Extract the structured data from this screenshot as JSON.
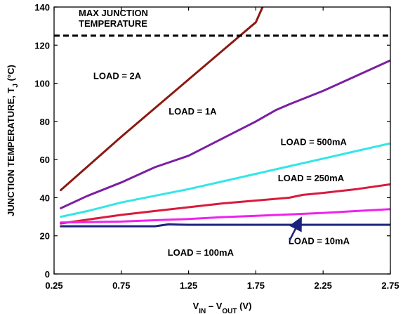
{
  "chart_data": {
    "type": "line",
    "title": "",
    "xlabel": {
      "parts": [
        {
          "text": "V",
          "sub": false
        },
        {
          "text": "IN",
          "sub": true
        },
        {
          "text": " – V",
          "sub": false
        },
        {
          "text": "OUT",
          "sub": true
        },
        {
          "text": " (V)",
          "sub": false
        }
      ]
    },
    "ylabel": {
      "parts": [
        {
          "text": "JUNCTION TEMPERATURE, T",
          "sub": false
        },
        {
          "text": "J",
          "sub": true
        },
        {
          "text": " (°C)",
          "sub": false
        }
      ]
    },
    "xlim": [
      0.25,
      2.75
    ],
    "ylim": [
      0,
      140
    ],
    "x_ticks": [
      0.25,
      0.75,
      1.25,
      1.75,
      2.25,
      2.75
    ],
    "x_tick_labels": [
      "0.25",
      "0.75",
      "1.25",
      "1.75",
      "2.25",
      "2.75"
    ],
    "y_ticks": [
      0,
      20,
      40,
      60,
      80,
      100,
      120,
      140
    ],
    "y_tick_labels": [
      "0",
      "20",
      "40",
      "60",
      "80",
      "100",
      "120",
      "140"
    ],
    "grid": false,
    "reference_line": {
      "y": 125,
      "label_lines": [
        "MAX JUNCTION",
        "TEMPERATURE"
      ],
      "color": "#000000",
      "style": "dashed"
    },
    "series": [
      {
        "name": "LOAD = 2A",
        "color": "#8b1a12",
        "x": [
          0.3,
          0.75,
          1.0,
          1.25,
          1.5,
          1.75,
          1.8
        ],
        "y": [
          44,
          72,
          87,
          102,
          117,
          132,
          140
        ]
      },
      {
        "name": "LOAD = 1A",
        "color": "#7b1fa2",
        "x": [
          0.3,
          0.5,
          0.75,
          1.0,
          1.25,
          1.5,
          1.75,
          1.9,
          2.0,
          2.25,
          2.5,
          2.75
        ],
        "y": [
          34.5,
          41,
          48,
          56,
          62,
          71,
          80,
          86,
          89,
          96,
          104,
          112
        ]
      },
      {
        "name": "LOAD = 500mA",
        "color": "#33e6e6",
        "x": [
          0.3,
          0.5,
          0.75,
          1.0,
          1.25,
          1.5,
          1.75,
          2.0,
          2.25,
          2.5,
          2.75
        ],
        "y": [
          30,
          33,
          37.5,
          41,
          44.5,
          48.5,
          52.5,
          56.5,
          60.5,
          64.5,
          68.5
        ]
      },
      {
        "name": "LOAD = 250mA",
        "color": "#d81b3c",
        "x": [
          0.3,
          0.5,
          0.75,
          1.0,
          1.25,
          1.5,
          1.75,
          2.0,
          2.1,
          2.25,
          2.5,
          2.75
        ],
        "y": [
          26.5,
          28.5,
          31,
          33,
          35,
          37,
          38.5,
          40,
          41.5,
          42.5,
          44.5,
          47
        ]
      },
      {
        "name": "LOAD = 100mA",
        "color": "#ee22ee",
        "x": [
          0.3,
          0.75,
          1.0,
          1.25,
          1.5,
          1.75,
          2.0,
          2.25,
          2.5,
          2.75
        ],
        "y": [
          27,
          27.5,
          28.2,
          28.8,
          29.8,
          30.5,
          31.2,
          32,
          33,
          34
        ]
      },
      {
        "name": "LOAD = 10mA",
        "color": "#1a237e",
        "x": [
          0.3,
          0.75,
          1.0,
          1.1,
          1.25,
          1.5,
          1.75,
          2.0,
          2.25,
          2.5,
          2.75
        ],
        "y": [
          25,
          25,
          25,
          26,
          25.8,
          25.8,
          25.8,
          25.8,
          25.8,
          25.8,
          25.8
        ]
      }
    ],
    "labels": [
      {
        "text": "LOAD = 2A",
        "x": 0.72,
        "y": 104
      },
      {
        "text": "LOAD = 1A",
        "x": 1.28,
        "y": 85.5
      },
      {
        "text": "LOAD = 500mA",
        "x": 2.18,
        "y": 69.5
      },
      {
        "text": "LOAD = 250mA",
        "x": 2.16,
        "y": 50.5
      },
      {
        "text": "LOAD = 10mA",
        "x": 2.22,
        "y": 17.5
      },
      {
        "text": "LOAD = 100mA",
        "x": 1.34,
        "y": 11.5
      }
    ],
    "arrow": {
      "from": [
        2.0,
        17.5
      ],
      "to": [
        2.08,
        28.5
      ],
      "color": "#1a237e",
      "points_to": "LOAD = 10mA"
    }
  }
}
